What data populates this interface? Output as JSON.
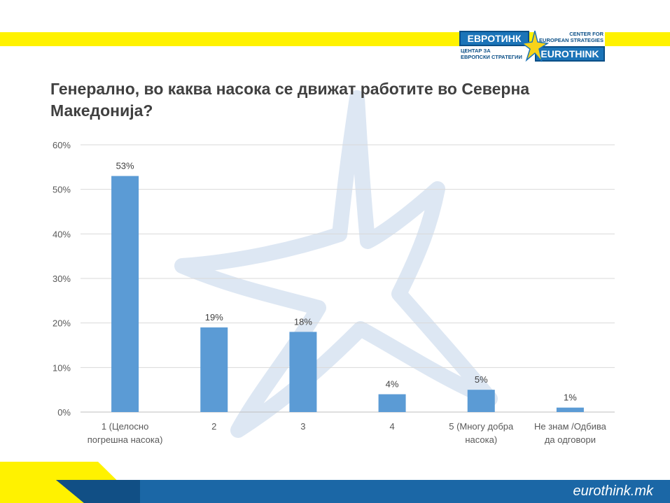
{
  "header": {
    "logo_mk_name": "ЕВРОТИНК",
    "logo_mk_subtitle_line1": "ЦЕНТАР ЗА",
    "logo_mk_subtitle_line2": "ЕВРОПСКИ СТРАТЕГИИ",
    "logo_en_subtitle_line1": "CENTER FOR",
    "logo_en_subtitle_line2": "EUROPEAN STRATEGIES",
    "logo_en_name": "EUROTHINK"
  },
  "title_line1": "Генерално, во каква насока се движат работите во Северна",
  "title_line2": "Македонија?",
  "colors": {
    "bar": "#5b9bd5",
    "title": "#404040",
    "yellow": "#fff200",
    "footer_blue": "#1b67a6"
  },
  "footer": {
    "brand": "eurothink.mk"
  },
  "chart_data": {
    "type": "bar",
    "categories": [
      [
        "1 (Целосно",
        "погрешна насока)"
      ],
      [
        "2"
      ],
      [
        "3"
      ],
      [
        "4"
      ],
      [
        "5 (Многу добра",
        "насока)"
      ],
      [
        "Не знам /Одбива",
        "да одговори"
      ]
    ],
    "values": [
      53,
      19,
      18,
      4,
      5,
      1
    ],
    "value_labels": [
      "53%",
      "19%",
      "18%",
      "4%",
      "5%",
      "1%"
    ],
    "yticks": [
      "0%",
      "10%",
      "20%",
      "30%",
      "40%",
      "50%",
      "60%"
    ],
    "ylim": [
      0,
      60
    ],
    "grid": true
  }
}
